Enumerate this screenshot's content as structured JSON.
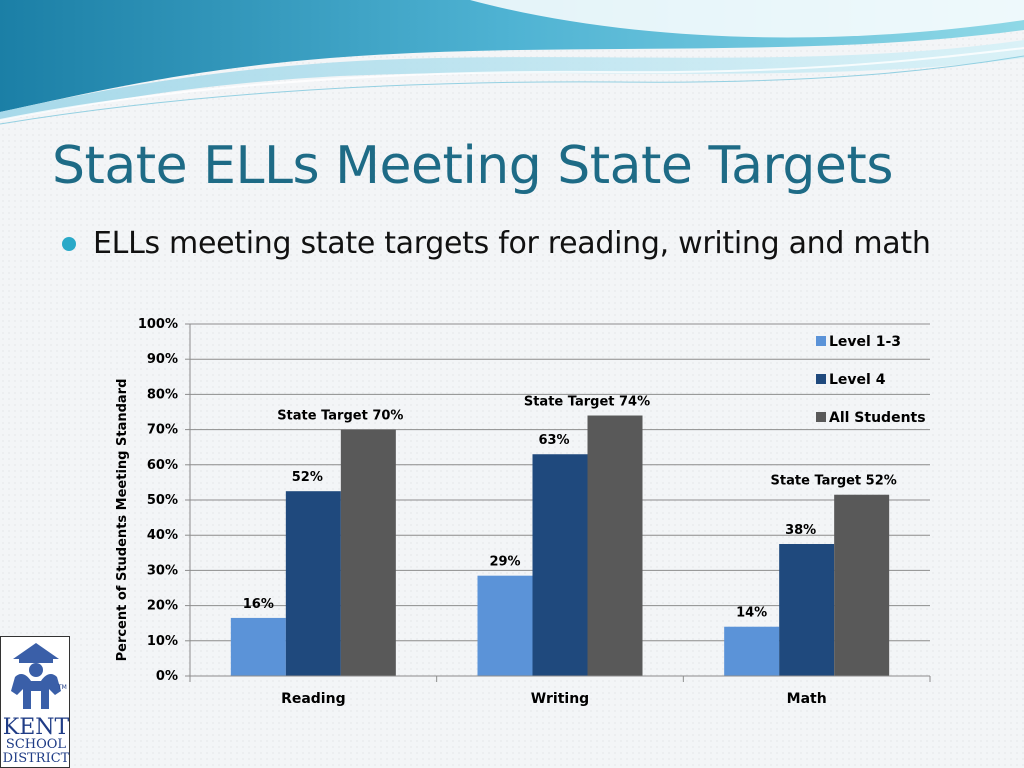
{
  "slide": {
    "title": "State ELLs Meeting State Targets",
    "bullet": "ELLs meeting state targets for reading, writing and math"
  },
  "logo": {
    "line1": "KENT",
    "line2": "SCHOOL",
    "line3": "DISTRICT",
    "tm": "TM"
  },
  "colors": {
    "title": "#1e6b86",
    "bullet": "#2aa9c8"
  },
  "chart_data": {
    "type": "bar",
    "categories": [
      "Reading",
      "Writing",
      "Math"
    ],
    "series": [
      {
        "name": "Level 1-3",
        "color": "#5b93d8",
        "values": [
          16.5,
          28.5,
          14
        ],
        "labels": [
          "16%",
          "29%",
          "14%"
        ]
      },
      {
        "name": "Level 4",
        "color": "#1f497d",
        "values": [
          52.5,
          63,
          37.5
        ],
        "labels": [
          "52%",
          "63%",
          "38%"
        ]
      },
      {
        "name": "All Students",
        "color": "#595959",
        "values": [
          70,
          74,
          51.5
        ],
        "labels": [
          "State Target 70%",
          "State Target 74%",
          "State Target 52%"
        ]
      }
    ],
    "ylabel": "Percent of Students Meeting Standard",
    "xlabel": "",
    "ylim": [
      0,
      100
    ],
    "yticks": [
      0,
      10,
      20,
      30,
      40,
      50,
      60,
      70,
      80,
      90,
      100
    ],
    "yticks_format": "percent",
    "grid": true,
    "legend": "top-right"
  }
}
